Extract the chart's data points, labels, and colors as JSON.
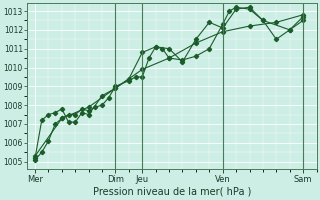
{
  "title": "",
  "xlabel": "Pression niveau de la mer( hPa )",
  "bg_color": "#cceee4",
  "grid_color": "#aaddcc",
  "line_color": "#1a5c2a",
  "ylim": [
    1004.6,
    1013.4
  ],
  "yticks": [
    1005,
    1006,
    1007,
    1008,
    1009,
    1010,
    1011,
    1012,
    1013
  ],
  "xtick_labels": [
    "Mer",
    "Dim",
    "Jeu",
    "Ven",
    "Sam"
  ],
  "xtick_positions": [
    0,
    3,
    4,
    7,
    10
  ],
  "vlines_x": [
    3,
    4,
    7,
    10
  ],
  "series1_x": [
    0.0,
    0.25,
    0.5,
    0.75,
    1.0,
    1.25,
    1.5,
    1.75,
    2.0,
    2.25,
    2.5,
    2.75,
    3.0,
    3.5,
    3.75,
    4.0,
    4.25,
    4.5,
    4.75,
    5.0,
    5.5,
    6.0,
    6.5,
    7.0,
    7.25,
    7.5,
    8.0,
    8.5,
    9.0,
    9.5,
    10.0
  ],
  "series1_y": [
    1005.1,
    1005.5,
    1006.1,
    1007.0,
    1007.3,
    1007.5,
    1007.5,
    1007.8,
    1007.7,
    1007.9,
    1008.0,
    1008.4,
    1009.0,
    1009.3,
    1009.5,
    1009.5,
    1010.5,
    1011.1,
    1011.0,
    1010.5,
    1010.4,
    1010.6,
    1011.0,
    1012.3,
    1013.0,
    1013.2,
    1013.1,
    1012.5,
    1011.5,
    1012.0,
    1012.7
  ],
  "series2_x": [
    0.0,
    0.25,
    0.5,
    0.75,
    1.0,
    1.25,
    1.5,
    1.75,
    2.0,
    2.5,
    3.0,
    3.5,
    4.0,
    4.5,
    5.0,
    5.5,
    6.0,
    6.5,
    7.0,
    7.5,
    8.0,
    8.5,
    9.5,
    10.0
  ],
  "series2_y": [
    1005.2,
    1007.2,
    1007.5,
    1007.6,
    1007.8,
    1007.1,
    1007.1,
    1007.6,
    1007.5,
    1008.5,
    1008.9,
    1009.4,
    1010.8,
    1011.1,
    1011.0,
    1010.3,
    1011.5,
    1012.4,
    1012.1,
    1013.1,
    1013.2,
    1012.5,
    1012.0,
    1012.5
  ],
  "series3_x": [
    0.0,
    1.0,
    2.0,
    3.0,
    4.0,
    5.0,
    6.0,
    7.0,
    8.0,
    9.0,
    10.0
  ],
  "series3_y": [
    1005.3,
    1007.3,
    1007.9,
    1008.9,
    1009.9,
    1010.5,
    1011.3,
    1011.9,
    1012.2,
    1012.4,
    1012.8
  ],
  "figsize": [
    3.2,
    2.0
  ],
  "dpi": 100
}
